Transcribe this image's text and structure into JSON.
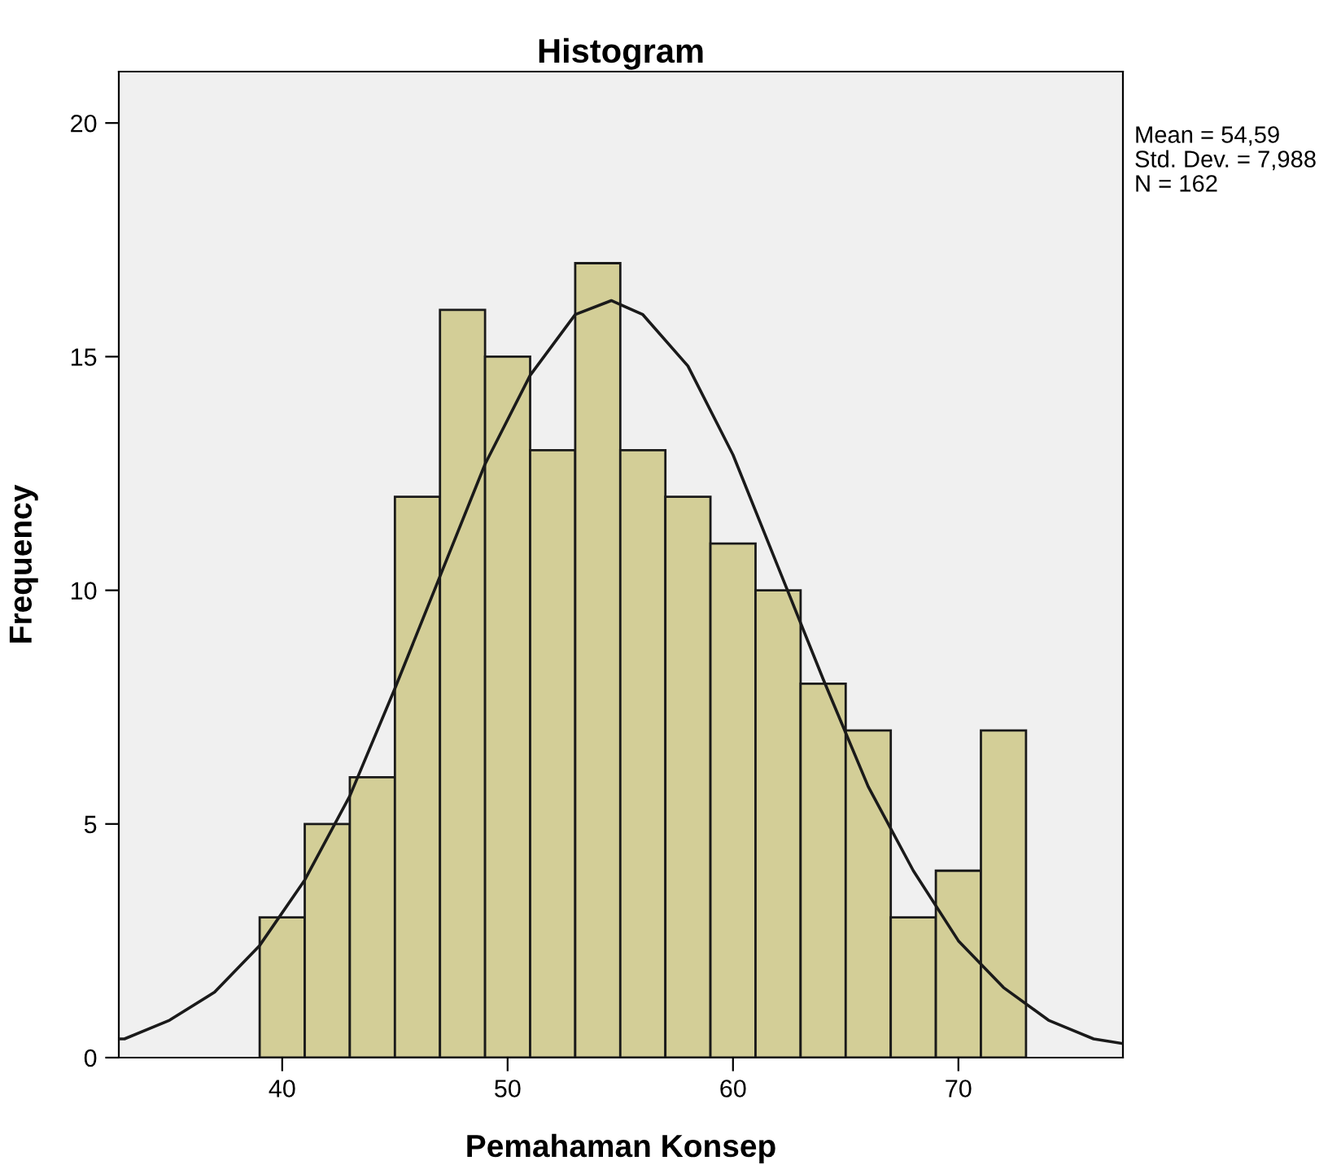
{
  "chart_data": {
    "type": "histogram",
    "title": "Histogram",
    "xlabel": "Pemahaman Konsep",
    "ylabel": "Frequency",
    "bins": [
      39,
      41,
      43,
      45,
      47,
      49,
      51,
      53,
      55,
      57,
      59,
      61,
      63,
      65,
      67,
      69,
      71,
      73
    ],
    "values": [
      3,
      5,
      6,
      12,
      16,
      15,
      13,
      17,
      13,
      12,
      11,
      10,
      8,
      7,
      3,
      4,
      7
    ],
    "color": "#d3ce97",
    "series": [
      {
        "type": "line",
        "color": "#1a1a1a",
        "x": [
          32.75,
          33,
          35,
          37,
          39,
          41,
          43,
          45,
          47,
          49,
          51,
          53,
          54.6,
          56,
          58,
          60,
          62,
          64,
          66,
          68,
          70,
          72,
          74,
          76,
          77.3
        ],
        "values": [
          0.4,
          0.4,
          0.8,
          1.4,
          2.4,
          3.8,
          5.6,
          7.9,
          10.3,
          12.7,
          14.6,
          15.9,
          16.2,
          15.9,
          14.8,
          12.9,
          10.5,
          8.1,
          5.8,
          4.0,
          2.5,
          1.5,
          0.8,
          0.4,
          0.3
        ]
      }
    ],
    "xlim": [
      32.75,
      77.3
    ],
    "xticks": [
      40,
      50,
      60,
      70
    ],
    "ylim": [
      0,
      21.1
    ],
    "yticks": [
      0,
      5,
      10,
      15,
      20
    ],
    "annotations": [
      "Mean = 54,59",
      "Std. Dev. = 7,988",
      "N = 162"
    ]
  }
}
